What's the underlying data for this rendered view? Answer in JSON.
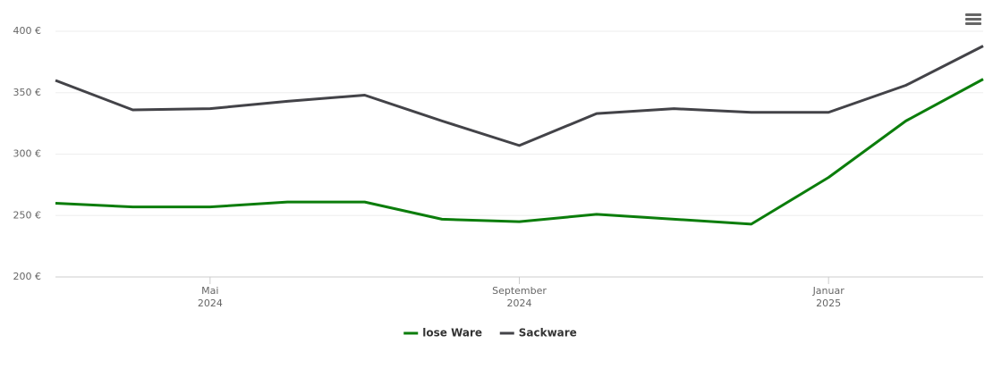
{
  "chart_data": {
    "type": "line",
    "x": [
      "2024-03",
      "2024-04",
      "2024-05",
      "2024-06",
      "2024-07",
      "2024-08",
      "2024-09",
      "2024-10",
      "2024-11",
      "2024-12",
      "2025-01",
      "2025-02",
      "2025-03"
    ],
    "series": [
      {
        "name": "lose Ware",
        "color": "#0b7d0b",
        "values": [
          260,
          257,
          257,
          261,
          261,
          247,
          245,
          251,
          247,
          243,
          281,
          327,
          361
        ]
      },
      {
        "name": "Sackware",
        "color": "#434348",
        "values": [
          360,
          336,
          337,
          343,
          348,
          327,
          307,
          333,
          337,
          334,
          334,
          356,
          388
        ]
      }
    ],
    "xlim": [
      "2024-03",
      "2025-03"
    ],
    "xticks": [
      {
        "value": "2024-05",
        "label": "Mai\n2024"
      },
      {
        "value": "2024-09",
        "label": "September\n2024"
      },
      {
        "value": "2025-01",
        "label": "Januar\n2025"
      }
    ],
    "ylim": [
      200,
      400
    ],
    "yticks": [
      {
        "value": 200,
        "label": "200 €"
      },
      {
        "value": 250,
        "label": "250 €"
      },
      {
        "value": 300,
        "label": "300 €"
      },
      {
        "value": 350,
        "label": "350 €"
      },
      {
        "value": 400,
        "label": "400 €"
      }
    ],
    "grid": true,
    "legend": "bottom"
  }
}
